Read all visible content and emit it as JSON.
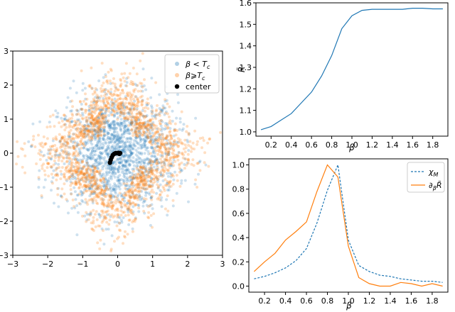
{
  "chart_data": [
    {
      "type": "scatter",
      "xlim": [
        -3,
        3
      ],
      "ylim": [
        -3,
        3
      ],
      "xticks": [
        "-3",
        "-2",
        "-1",
        "0",
        "1",
        "2",
        "3"
      ],
      "yticks": [
        "-3",
        "-2",
        "-1",
        "0",
        "1",
        "2",
        "3"
      ],
      "legend_position": "top-right",
      "grid": false,
      "series": [
        {
          "name": "β < T_c",
          "color": "#1f77b4",
          "shape": "disk",
          "radius_range": [
            0,
            2.2
          ]
        },
        {
          "name": "β ⩾ T_c",
          "color": "#ff7f0e",
          "shape": "ring",
          "radius_range": [
            0.8,
            2.3
          ]
        },
        {
          "name": "center",
          "color": "#000000",
          "points": [
            [
              -0.22,
              -0.28
            ],
            [
              -0.2,
              -0.2
            ],
            [
              -0.17,
              -0.12
            ],
            [
              -0.14,
              -0.06
            ],
            [
              -0.1,
              -0.02
            ],
            [
              -0.06,
              0.0
            ],
            [
              -0.02,
              0.0
            ],
            [
              0.02,
              0.01
            ],
            [
              0.05,
              -0.02
            ],
            [
              0.07,
              0.0
            ]
          ]
        }
      ],
      "legend": {
        "item1": "β < T",
        "item1_sub": "c",
        "item2": "β⩾T",
        "item2_sub": "c",
        "item3": "center"
      }
    },
    {
      "type": "line",
      "xlabel": "β",
      "ylabel": "R̃",
      "xlim": [
        0.05,
        1.95
      ],
      "ylim": [
        0.98,
        1.6
      ],
      "xticks": [
        "0.2",
        "0.4",
        "0.6",
        "0.8",
        "1.0",
        "1.2",
        "1.4",
        "1.6",
        "1.8"
      ],
      "yticks": [
        "1.0",
        "1.1",
        "1.2",
        "1.3",
        "1.4",
        "1.5",
        "1.6"
      ],
      "series": [
        {
          "color": "#1f77b4",
          "x": [
            0.1,
            0.2,
            0.3,
            0.4,
            0.5,
            0.6,
            0.7,
            0.8,
            0.9,
            1.0,
            1.1,
            1.2,
            1.3,
            1.4,
            1.5,
            1.6,
            1.7,
            1.8,
            1.9
          ],
          "y": [
            1.01,
            1.025,
            1.055,
            1.085,
            1.135,
            1.185,
            1.26,
            1.355,
            1.48,
            1.54,
            1.565,
            1.57,
            1.57,
            1.57,
            1.57,
            1.575,
            1.575,
            1.572,
            1.572
          ]
        }
      ]
    },
    {
      "type": "line",
      "xlabel": "β",
      "xlim": [
        0.05,
        1.95
      ],
      "ylim": [
        -0.05,
        1.05
      ],
      "xticks": [
        "0.2",
        "0.4",
        "0.6",
        "0.8",
        "1.0",
        "1.2",
        "1.4",
        "1.6",
        "1.8"
      ],
      "yticks": [
        "0.0",
        "0.2",
        "0.4",
        "0.6",
        "0.8",
        "1.0"
      ],
      "legend_position": "top-right",
      "legend": {
        "item1": "χ",
        "item1_sub": "M",
        "item2": "∂",
        "item2_sub": "β",
        "item2_tail": "R̃"
      },
      "series": [
        {
          "color": "#1f77b4",
          "style": "dashed",
          "x": [
            0.1,
            0.2,
            0.3,
            0.4,
            0.5,
            0.6,
            0.7,
            0.8,
            0.9,
            1.0,
            1.1,
            1.2,
            1.3,
            1.4,
            1.5,
            1.6,
            1.7,
            1.8,
            1.9
          ],
          "y": [
            0.06,
            0.08,
            0.11,
            0.15,
            0.21,
            0.31,
            0.52,
            0.79,
            1.0,
            0.38,
            0.17,
            0.12,
            0.09,
            0.08,
            0.06,
            0.05,
            0.04,
            0.04,
            0.03
          ]
        },
        {
          "color": "#ff7f0e",
          "style": "solid",
          "x": [
            0.1,
            0.2,
            0.3,
            0.4,
            0.5,
            0.6,
            0.7,
            0.8,
            0.9,
            1.0,
            1.1,
            1.2,
            1.3,
            1.4,
            1.5,
            1.6,
            1.7,
            1.8,
            1.9
          ],
          "y": [
            0.12,
            0.2,
            0.27,
            0.38,
            0.45,
            0.53,
            0.78,
            1.0,
            0.9,
            0.33,
            0.07,
            0.02,
            0.0,
            0.0,
            0.03,
            0.02,
            0.0,
            0.02,
            0.0
          ]
        }
      ]
    }
  ]
}
